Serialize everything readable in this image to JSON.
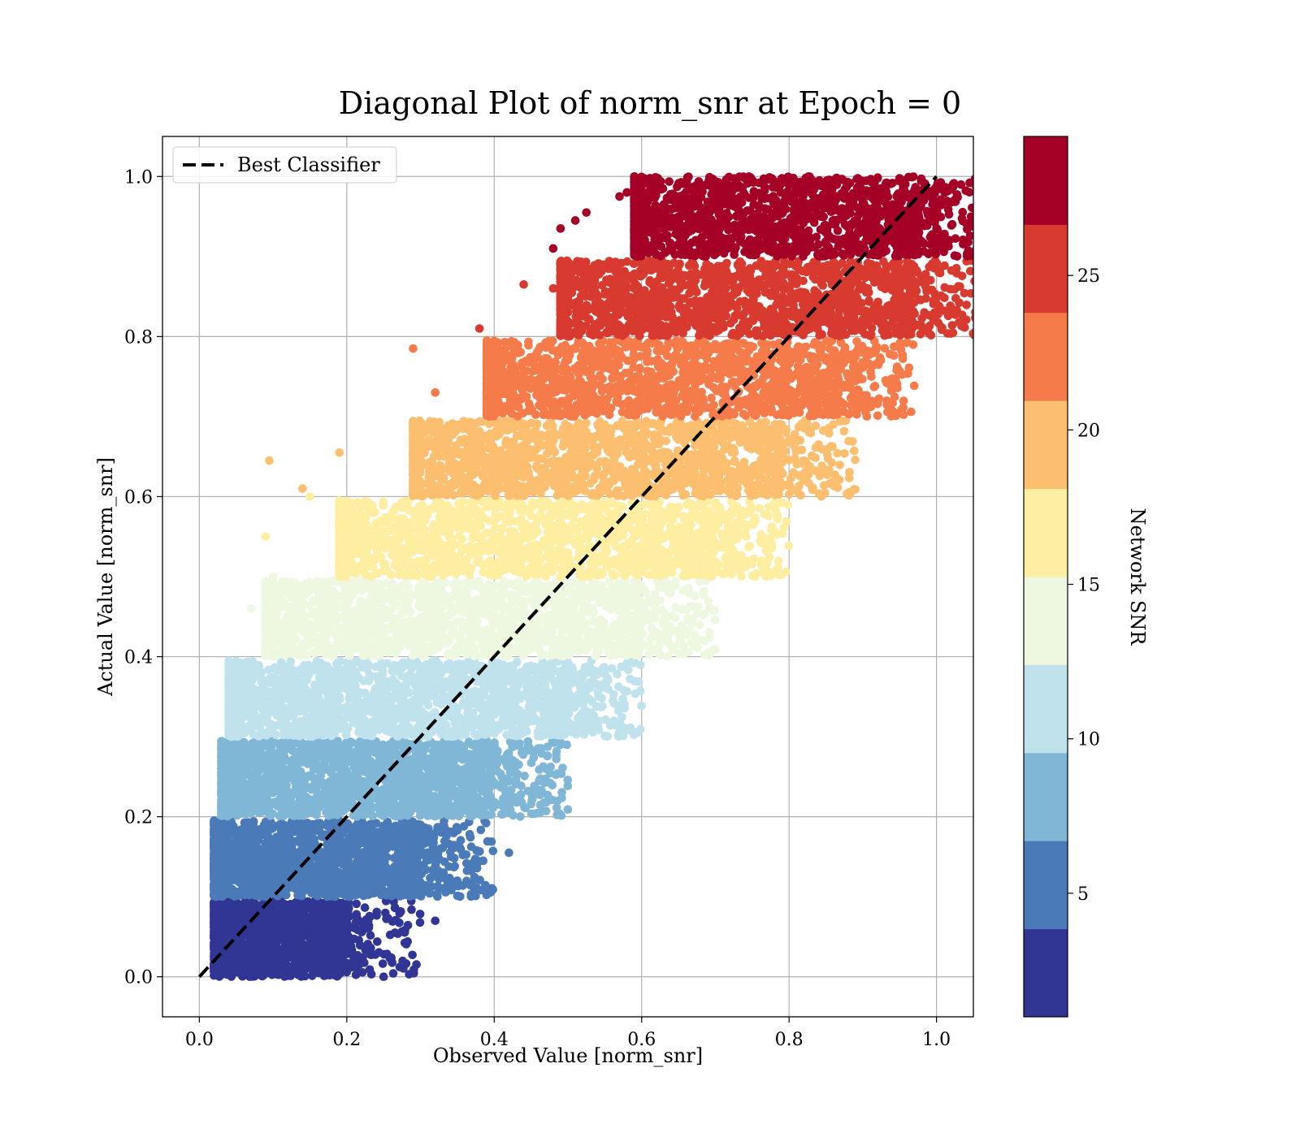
{
  "chart_data": {
    "type": "scatter",
    "title": "Diagonal Plot of norm_snr at Epoch = 0",
    "xlabel": "Observed Value [norm_snr]",
    "ylabel": "Actual Value [norm_snr]",
    "xlim": [
      -0.05,
      1.05
    ],
    "ylim": [
      -0.05,
      1.05
    ],
    "x_ticks": [
      "0.0",
      "0.2",
      "0.4",
      "0.6",
      "0.8",
      "1.0"
    ],
    "y_ticks": [
      "0.0",
      "0.2",
      "0.4",
      "0.6",
      "0.8",
      "1.0"
    ],
    "grid": true,
    "legend": {
      "placement": "top-left",
      "entries": [
        {
          "label": "Best Classifier",
          "style": "dashed",
          "color": "#000000"
        }
      ]
    },
    "reference_line": {
      "x": [
        0,
        1
      ],
      "y": [
        0,
        1
      ]
    },
    "colorbar": {
      "label": "Network SNR",
      "range": [
        1,
        29.5
      ],
      "ticks": [
        "5",
        "10",
        "15",
        "20",
        "25"
      ],
      "colors": [
        "#313695",
        "#4a7ab7",
        "#80b6d6",
        "#bfe2ed",
        "#eef7df",
        "#feeea2",
        "#fcbe6f",
        "#f57b4a",
        "#d83a2f",
        "#a50026"
      ]
    },
    "bands": [
      {
        "y_range": [
          0.0,
          0.095
        ],
        "x_range": [
          0.03,
          0.19
        ],
        "color": "#313695",
        "count": 1400,
        "spread": 0.11
      },
      {
        "y_range": [
          0.1,
          0.195
        ],
        "x_range": [
          0.03,
          0.29
        ],
        "color": "#4a7ab7",
        "count": 1800,
        "spread": 0.11
      },
      {
        "y_range": [
          0.2,
          0.295
        ],
        "x_range": [
          0.04,
          0.39
        ],
        "color": "#80b6d6",
        "count": 1900,
        "spread": 0.11
      },
      {
        "y_range": [
          0.3,
          0.395
        ],
        "x_range": [
          0.05,
          0.49
        ],
        "color": "#bfe2ed",
        "count": 1900,
        "spread": 0.11
      },
      {
        "y_range": [
          0.4,
          0.495
        ],
        "x_range": [
          0.1,
          0.59
        ],
        "color": "#eef7df",
        "count": 1800,
        "spread": 0.11
      },
      {
        "y_range": [
          0.5,
          0.595
        ],
        "x_range": [
          0.2,
          0.69
        ],
        "color": "#feeea2",
        "count": 1700,
        "spread": 0.11
      },
      {
        "y_range": [
          0.6,
          0.695
        ],
        "x_range": [
          0.3,
          0.78
        ],
        "color": "#fcbe6f",
        "count": 1600,
        "spread": 0.11
      },
      {
        "y_range": [
          0.7,
          0.795
        ],
        "x_range": [
          0.4,
          0.86
        ],
        "color": "#f57b4a",
        "count": 1600,
        "spread": 0.11
      },
      {
        "y_range": [
          0.8,
          0.895
        ],
        "x_range": [
          0.5,
          0.96
        ],
        "color": "#d83a2f",
        "count": 1600,
        "spread": 0.1
      },
      {
        "y_range": [
          0.9,
          1.0
        ],
        "x_range": [
          0.6,
          0.97
        ],
        "color": "#a50026",
        "count": 1500,
        "spread": 0.1
      }
    ],
    "outliers": [
      {
        "x": 0.32,
        "y": 0.07,
        "color": "#313695"
      },
      {
        "x": 0.25,
        "y": 0.0,
        "color": "#313695"
      },
      {
        "x": 0.42,
        "y": 0.155,
        "color": "#4a7ab7"
      },
      {
        "x": 0.385,
        "y": 0.145,
        "color": "#4a7ab7"
      },
      {
        "x": 0.35,
        "y": 0.12,
        "color": "#4a7ab7"
      },
      {
        "x": 0.47,
        "y": 0.26,
        "color": "#80b6d6"
      },
      {
        "x": 0.49,
        "y": 0.29,
        "color": "#80b6d6"
      },
      {
        "x": 0.52,
        "y": 0.33,
        "color": "#bfe2ed"
      },
      {
        "x": 0.55,
        "y": 0.38,
        "color": "#bfe2ed"
      },
      {
        "x": 0.62,
        "y": 0.43,
        "color": "#eef7df"
      },
      {
        "x": 0.07,
        "y": 0.46,
        "color": "#eef7df"
      },
      {
        "x": 0.1,
        "y": 0.5,
        "color": "#eef7df"
      },
      {
        "x": 0.695,
        "y": 0.5,
        "color": "#feeea2"
      },
      {
        "x": 0.09,
        "y": 0.55,
        "color": "#feeea2"
      },
      {
        "x": 0.15,
        "y": 0.6,
        "color": "#feeea2"
      },
      {
        "x": 0.72,
        "y": 0.56,
        "color": "#feeea2"
      },
      {
        "x": 0.095,
        "y": 0.645,
        "color": "#fcbe6f"
      },
      {
        "x": 0.19,
        "y": 0.655,
        "color": "#fcbe6f"
      },
      {
        "x": 0.14,
        "y": 0.61,
        "color": "#fcbe6f"
      },
      {
        "x": 0.84,
        "y": 0.665,
        "color": "#fcbe6f"
      },
      {
        "x": 0.86,
        "y": 0.69,
        "color": "#fcbe6f"
      },
      {
        "x": 0.29,
        "y": 0.785,
        "color": "#f57b4a"
      },
      {
        "x": 0.32,
        "y": 0.73,
        "color": "#f57b4a"
      },
      {
        "x": 0.41,
        "y": 0.76,
        "color": "#f57b4a"
      },
      {
        "x": 0.88,
        "y": 0.75,
        "color": "#f57b4a"
      },
      {
        "x": 0.38,
        "y": 0.81,
        "color": "#d83a2f"
      },
      {
        "x": 0.44,
        "y": 0.865,
        "color": "#d83a2f"
      },
      {
        "x": 0.5,
        "y": 0.8,
        "color": "#d83a2f"
      },
      {
        "x": 0.52,
        "y": 0.88,
        "color": "#d83a2f"
      },
      {
        "x": 0.48,
        "y": 0.86,
        "color": "#d83a2f"
      },
      {
        "x": 0.95,
        "y": 0.825,
        "color": "#d83a2f"
      },
      {
        "x": 0.48,
        "y": 0.91,
        "color": "#a50026"
      },
      {
        "x": 0.49,
        "y": 0.935,
        "color": "#a50026"
      },
      {
        "x": 0.51,
        "y": 0.945,
        "color": "#a50026"
      },
      {
        "x": 0.525,
        "y": 0.955,
        "color": "#a50026"
      },
      {
        "x": 0.57,
        "y": 0.975,
        "color": "#a50026"
      },
      {
        "x": 0.58,
        "y": 0.98,
        "color": "#a50026"
      },
      {
        "x": 0.66,
        "y": 0.98,
        "color": "#a50026"
      },
      {
        "x": 0.71,
        "y": 0.99,
        "color": "#a50026"
      }
    ]
  }
}
